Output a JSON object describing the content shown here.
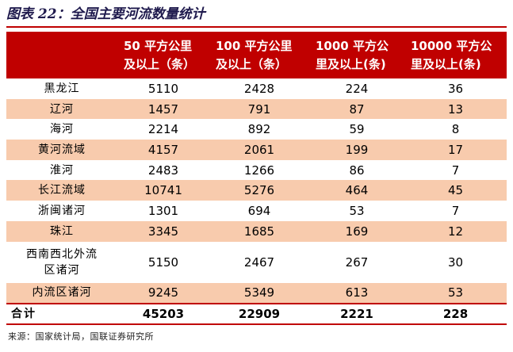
{
  "figure": {
    "title": "图表 22：全国主要河流数量统计",
    "source": "来源：国家统计局，国联证券研究所"
  },
  "colors": {
    "header_bg": "#c00000",
    "shade_bg": "#f8cbad",
    "title": "#1f1a4d"
  },
  "table": {
    "headers": [
      "",
      "50 平方公里及以上（条）",
      "100 平方公里及以上（条）",
      "1000 平方公里及以上(条)",
      "10000 平方公里及以上(条)"
    ],
    "header_lines": [
      [
        "50 平方公里",
        "及以上（条）"
      ],
      [
        "100 平方公里",
        "及以上（条）"
      ],
      [
        "1000 平方公",
        "里及以上(条)"
      ],
      [
        "10000 平方公",
        "里及以上(条)"
      ]
    ],
    "rows": [
      {
        "name": "黑龙江",
        "values": [
          "5110",
          "2428",
          "224",
          "36"
        ]
      },
      {
        "name": "辽河",
        "values": [
          "1457",
          "791",
          "87",
          "13"
        ]
      },
      {
        "name": "海河",
        "values": [
          "2214",
          "892",
          "59",
          "8"
        ]
      },
      {
        "name": "黄河流域",
        "values": [
          "4157",
          "2061",
          "199",
          "17"
        ]
      },
      {
        "name": "淮河",
        "values": [
          "2483",
          "1266",
          "86",
          "7"
        ]
      },
      {
        "name": "长江流域",
        "values": [
          "10741",
          "5276",
          "464",
          "45"
        ]
      },
      {
        "name": "浙闽诸河",
        "values": [
          "1301",
          "694",
          "53",
          "7"
        ]
      },
      {
        "name": "珠江",
        "values": [
          "3345",
          "1685",
          "169",
          "12"
        ]
      },
      {
        "name_lines": [
          "西南西北外流",
          "区诸河"
        ],
        "values": [
          "5150",
          "2467",
          "267",
          "30"
        ]
      },
      {
        "name": "内流区诸河",
        "values": [
          "9245",
          "5349",
          "613",
          "53"
        ]
      }
    ],
    "total": {
      "name": "合计",
      "values": [
        "45203",
        "22909",
        "2221",
        "228"
      ]
    }
  }
}
